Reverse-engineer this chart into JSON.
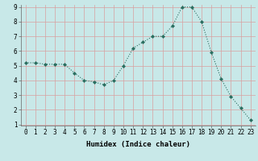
{
  "x": [
    0,
    1,
    2,
    3,
    4,
    5,
    6,
    7,
    8,
    9,
    10,
    11,
    12,
    13,
    14,
    15,
    16,
    17,
    18,
    19,
    20,
    21,
    22,
    23
  ],
  "y": [
    5.2,
    5.2,
    5.1,
    5.1,
    5.1,
    4.5,
    4.0,
    3.9,
    3.7,
    4.0,
    5.0,
    6.2,
    6.6,
    7.0,
    7.0,
    7.7,
    9.0,
    9.0,
    8.0,
    5.9,
    4.1,
    2.9,
    2.1,
    1.3
  ],
  "line_color": "#2a6e60",
  "marker_color": "#2a6e60",
  "bg_color": "#c8e8e8",
  "grid_color_v": "#d8a0a0",
  "grid_color_h": "#d8a0a0",
  "xlabel": "Humidex (Indice chaleur)",
  "ylim": [
    1,
    9
  ],
  "xlim": [
    0,
    23
  ],
  "yticks": [
    1,
    2,
    3,
    4,
    5,
    6,
    7,
    8,
    9
  ],
  "xticks": [
    0,
    1,
    2,
    3,
    4,
    5,
    6,
    7,
    8,
    9,
    10,
    11,
    12,
    13,
    14,
    15,
    16,
    17,
    18,
    19,
    20,
    21,
    22,
    23
  ],
  "tick_fontsize": 5.5,
  "label_fontsize": 6.5
}
